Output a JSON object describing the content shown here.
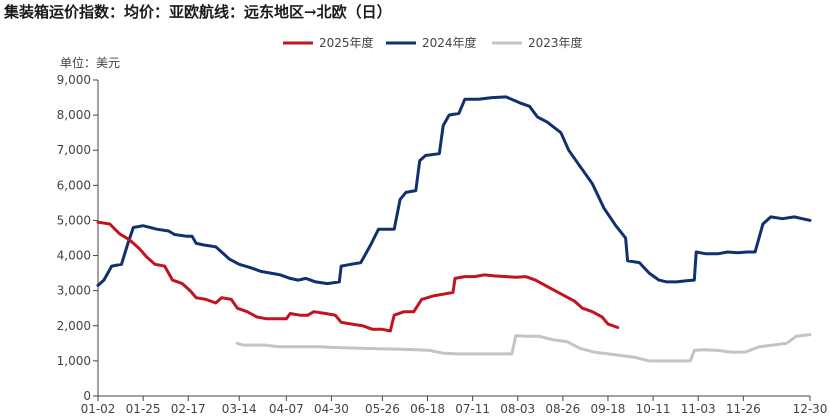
{
  "title": "集装箱运价指数：均价：亚欧航线：远东地区→北欧（日）",
  "unit_label": "单位：美元",
  "legend": [
    {
      "label": "2025年度",
      "color": "#c0141f"
    },
    {
      "label": "2024年度",
      "color": "#10306f"
    },
    {
      "label": "2023年度",
      "color": "#c4c4c4"
    }
  ],
  "chart_data": {
    "type": "line",
    "title": "集装箱运价指数：均价：亚欧航线：远东地区→北欧（日）",
    "ylabel": "单位：美元",
    "ylim": [
      0,
      9000
    ],
    "yticks": [
      0,
      1000,
      2000,
      3000,
      4000,
      5000,
      6000,
      7000,
      8000,
      9000
    ],
    "ytick_labels": [
      "0",
      "1,000",
      "2,000",
      "3,000",
      "4,000",
      "5,000",
      "6,000",
      "7,000",
      "8,000",
      "9,000"
    ],
    "x_ticks": [
      "01-02",
      "01-25",
      "02-17",
      "03-14",
      "04-07",
      "04-30",
      "05-26",
      "06-18",
      "07-11",
      "08-03",
      "08-26",
      "09-18",
      "10-11",
      "11-03",
      "11-26",
      "12-30"
    ],
    "grid": false,
    "legend_position": "top-center",
    "series": [
      {
        "name": "2025年度",
        "color": "#c0141f",
        "points": [
          [
            "01-02",
            4950
          ],
          [
            "01-08",
            4900
          ],
          [
            "01-13",
            4620
          ],
          [
            "01-18",
            4450
          ],
          [
            "01-23",
            4200
          ],
          [
            "01-27",
            3950
          ],
          [
            "01-31",
            3750
          ],
          [
            "02-05",
            3700
          ],
          [
            "02-09",
            3300
          ],
          [
            "02-14",
            3200
          ],
          [
            "02-18",
            3000
          ],
          [
            "02-21",
            2800
          ],
          [
            "02-26",
            2750
          ],
          [
            "03-02",
            2650
          ],
          [
            "03-05",
            2800
          ],
          [
            "03-10",
            2750
          ],
          [
            "03-13",
            2500
          ],
          [
            "03-18",
            2400
          ],
          [
            "03-23",
            2250
          ],
          [
            "03-28",
            2200
          ],
          [
            "04-02",
            2200
          ],
          [
            "04-07",
            2200
          ],
          [
            "04-09",
            2350
          ],
          [
            "04-14",
            2300
          ],
          [
            "04-18",
            2300
          ],
          [
            "04-21",
            2400
          ],
          [
            "04-27",
            2350
          ],
          [
            "05-02",
            2300
          ],
          [
            "05-05",
            2100
          ],
          [
            "05-10",
            2050
          ],
          [
            "05-16",
            2000
          ],
          [
            "05-21",
            1900
          ],
          [
            "05-26",
            1900
          ],
          [
            "05-30",
            1850
          ],
          [
            "06-01",
            2300
          ],
          [
            "06-06",
            2400
          ],
          [
            "06-11",
            2400
          ],
          [
            "06-15",
            2750
          ],
          [
            "06-21",
            2850
          ],
          [
            "06-26",
            2900
          ],
          [
            "07-01",
            2950
          ],
          [
            "07-02",
            3350
          ],
          [
            "07-07",
            3400
          ],
          [
            "07-12",
            3400
          ],
          [
            "07-17",
            3450
          ],
          [
            "07-22",
            3420
          ],
          [
            "07-28",
            3400
          ],
          [
            "08-02",
            3380
          ],
          [
            "08-07",
            3400
          ],
          [
            "08-12",
            3300
          ],
          [
            "08-17",
            3150
          ],
          [
            "08-22",
            3000
          ],
          [
            "08-27",
            2850
          ],
          [
            "09-01",
            2700
          ],
          [
            "09-05",
            2500
          ],
          [
            "09-10",
            2400
          ],
          [
            "09-15",
            2250
          ],
          [
            "09-18",
            2050
          ],
          [
            "09-23",
            1950
          ]
        ]
      },
      {
        "name": "2024年度",
        "color": "#10306f",
        "points": [
          [
            "01-02",
            3150
          ],
          [
            "01-05",
            3300
          ],
          [
            "01-09",
            3700
          ],
          [
            "01-14",
            3750
          ],
          [
            "01-17",
            4300
          ],
          [
            "01-20",
            4800
          ],
          [
            "01-25",
            4850
          ],
          [
            "02-01",
            4750
          ],
          [
            "02-07",
            4700
          ],
          [
            "02-10",
            4600
          ],
          [
            "02-16",
            4550
          ],
          [
            "02-19",
            4550
          ],
          [
            "02-21",
            4350
          ],
          [
            "02-25",
            4300
          ],
          [
            "03-02",
            4250
          ],
          [
            "03-05",
            4100
          ],
          [
            "03-09",
            3900
          ],
          [
            "03-14",
            3750
          ],
          [
            "03-20",
            3650
          ],
          [
            "03-25",
            3550
          ],
          [
            "03-30",
            3500
          ],
          [
            "04-04",
            3450
          ],
          [
            "04-09",
            3350
          ],
          [
            "04-13",
            3300
          ],
          [
            "04-17",
            3350
          ],
          [
            "04-22",
            3250
          ],
          [
            "04-28",
            3200
          ],
          [
            "05-04",
            3250
          ],
          [
            "05-05",
            3700
          ],
          [
            "05-10",
            3750
          ],
          [
            "05-15",
            3800
          ],
          [
            "05-20",
            4300
          ],
          [
            "05-24",
            4750
          ],
          [
            "05-29",
            4750
          ],
          [
            "06-01",
            4750
          ],
          [
            "06-04",
            5600
          ],
          [
            "06-07",
            5800
          ],
          [
            "06-12",
            5850
          ],
          [
            "06-14",
            6700
          ],
          [
            "06-17",
            6850
          ],
          [
            "06-24",
            6900
          ],
          [
            "06-26",
            7700
          ],
          [
            "06-29",
            8000
          ],
          [
            "07-04",
            8050
          ],
          [
            "07-07",
            8450
          ],
          [
            "07-14",
            8450
          ],
          [
            "07-21",
            8500
          ],
          [
            "07-28",
            8520
          ],
          [
            "08-04",
            8350
          ],
          [
            "08-09",
            8250
          ],
          [
            "08-13",
            7950
          ],
          [
            "08-18",
            7800
          ],
          [
            "08-25",
            7500
          ],
          [
            "08-29",
            7000
          ],
          [
            "09-03",
            6600
          ],
          [
            "09-10",
            6050
          ],
          [
            "09-16",
            5350
          ],
          [
            "09-22",
            4850
          ],
          [
            "09-27",
            4500
          ],
          [
            "09-28",
            3850
          ],
          [
            "10-04",
            3800
          ],
          [
            "10-09",
            3500
          ],
          [
            "10-14",
            3300
          ],
          [
            "10-18",
            3250
          ],
          [
            "10-23",
            3250
          ],
          [
            "10-28",
            3280
          ],
          [
            "11-01",
            3300
          ],
          [
            "11-02",
            4100
          ],
          [
            "11-07",
            4050
          ],
          [
            "11-13",
            4050
          ],
          [
            "11-18",
            4100
          ],
          [
            "11-23",
            4080
          ],
          [
            "11-28",
            4100
          ],
          [
            "12-02",
            4100
          ],
          [
            "12-06",
            4900
          ],
          [
            "12-10",
            5100
          ],
          [
            "12-16",
            5050
          ],
          [
            "12-22",
            5100
          ],
          [
            "12-26",
            5050
          ],
          [
            "12-30",
            5000
          ]
        ]
      },
      {
        "name": "2023年度",
        "color": "#c4c4c4",
        "points": [
          [
            "03-13",
            1500
          ],
          [
            "03-16",
            1450
          ],
          [
            "03-20",
            1450
          ],
          [
            "03-27",
            1450
          ],
          [
            "04-03",
            1400
          ],
          [
            "04-10",
            1400
          ],
          [
            "04-17",
            1400
          ],
          [
            "04-24",
            1400
          ],
          [
            "05-01",
            1380
          ],
          [
            "05-08",
            1370
          ],
          [
            "05-15",
            1360
          ],
          [
            "05-22",
            1350
          ],
          [
            "05-29",
            1340
          ],
          [
            "06-05",
            1330
          ],
          [
            "06-12",
            1320
          ],
          [
            "06-19",
            1300
          ],
          [
            "06-26",
            1220
          ],
          [
            "07-03",
            1200
          ],
          [
            "07-10",
            1200
          ],
          [
            "07-17",
            1200
          ],
          [
            "07-24",
            1200
          ],
          [
            "07-31",
            1200
          ],
          [
            "08-02",
            1720
          ],
          [
            "08-07",
            1700
          ],
          [
            "08-14",
            1700
          ],
          [
            "08-21",
            1600
          ],
          [
            "08-28",
            1550
          ],
          [
            "09-04",
            1350
          ],
          [
            "09-11",
            1250
          ],
          [
            "09-18",
            1200
          ],
          [
            "09-25",
            1150
          ],
          [
            "10-02",
            1100
          ],
          [
            "10-09",
            1000
          ],
          [
            "10-16",
            1000
          ],
          [
            "10-23",
            1000
          ],
          [
            "10-30",
            1000
          ],
          [
            "11-01",
            1300
          ],
          [
            "11-06",
            1320
          ],
          [
            "11-13",
            1300
          ],
          [
            "11-20",
            1250
          ],
          [
            "11-27",
            1250
          ],
          [
            "12-04",
            1400
          ],
          [
            "12-11",
            1450
          ],
          [
            "12-18",
            1500
          ],
          [
            "12-23",
            1700
          ],
          [
            "12-30",
            1750
          ]
        ]
      }
    ]
  }
}
